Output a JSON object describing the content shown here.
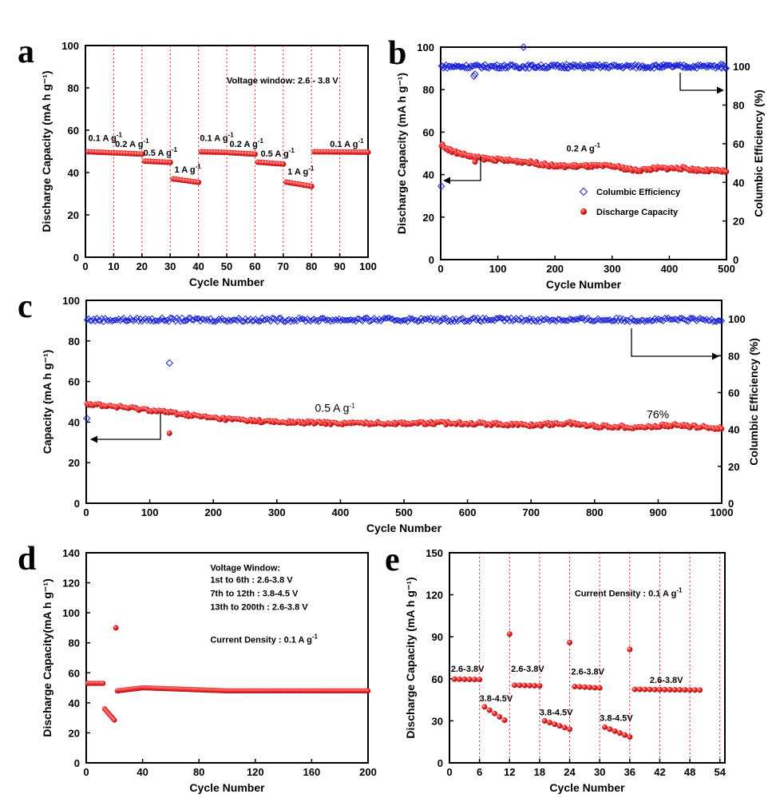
{
  "chart_data": [
    {
      "panel": "a",
      "type": "scatter",
      "xlabel": "Cycle Number",
      "ylabel": "Discharge Capacity (mA h g⁻¹)",
      "xlim": [
        0,
        100
      ],
      "ylim": [
        0,
        100
      ],
      "xticks": [
        0,
        10,
        20,
        30,
        40,
        50,
        60,
        70,
        80,
        90,
        100
      ],
      "yticks": [
        0,
        20,
        40,
        60,
        80,
        100
      ],
      "vlines": [
        10,
        20,
        30,
        40,
        50,
        60,
        70,
        80,
        90
      ],
      "series": [
        {
          "name": "Discharge Capacity",
          "color": "#e8191c",
          "segments": [
            {
              "from": 1,
              "to": 10,
              "start": 49.8,
              "end": 49.3
            },
            {
              "from": 11,
              "to": 20,
              "start": 49.3,
              "end": 48.7
            },
            {
              "from": 21,
              "to": 30,
              "start": 45.4,
              "end": 44.8
            },
            {
              "from": 31,
              "to": 40,
              "start": 37.0,
              "end": 35.4
            },
            {
              "from": 41,
              "to": 50,
              "start": 49.8,
              "end": 49.5
            },
            {
              "from": 51,
              "to": 60,
              "start": 49.4,
              "end": 48.7
            },
            {
              "from": 61,
              "to": 70,
              "start": 44.9,
              "end": 44.0
            },
            {
              "from": 71,
              "to": 80,
              "start": 35.5,
              "end": 33.5
            },
            {
              "from": 81,
              "to": 100,
              "start": 49.8,
              "end": 49.6
            }
          ]
        }
      ],
      "annotations": [
        {
          "text": "Voltage window: 2.6 - 3.8 V",
          "x": 50,
          "y": 82
        },
        {
          "text": "0.1 A g",
          "sup": "-1",
          "x": 1,
          "y": 55
        },
        {
          "text": "0.2 A g",
          "sup": "-1",
          "x": 10.5,
          "y": 52
        },
        {
          "text": "0.5 A g",
          "sup": "-1",
          "x": 20.5,
          "y": 48
        },
        {
          "text": "1 A g",
          "sup": "-1",
          "x": 31.5,
          "y": 40
        },
        {
          "text": "0.1 A g",
          "sup": "-1",
          "x": 40.5,
          "y": 55
        },
        {
          "text": "0.2 A g",
          "sup": "-1",
          "x": 51,
          "y": 52
        },
        {
          "text": "0.5 A g",
          "sup": "-1",
          "x": 62,
          "y": 47.5
        },
        {
          "text": "1 A g",
          "sup": "-1",
          "x": 71.5,
          "y": 39
        },
        {
          "text": "0.1 A g",
          "sup": "-1",
          "x": 86.5,
          "y": 52
        }
      ]
    },
    {
      "panel": "b",
      "type": "scatter",
      "xlabel": "Cycle Number",
      "ylabel": "Discharge Capacity (mA h g⁻¹)",
      "y2label": "Columbic Efficiency (%)",
      "xlim": [
        0,
        500
      ],
      "ylim": [
        0,
        100
      ],
      "y2lim": [
        0,
        110
      ],
      "xticks": [
        0,
        100,
        200,
        300,
        400,
        500
      ],
      "yticks": [
        0,
        20,
        40,
        60,
        80,
        100
      ],
      "y2ticks": [
        0,
        20,
        40,
        60,
        80,
        100
      ],
      "series": [
        {
          "name": "Columbic Efficiency",
          "axis": "right",
          "color": "#1a24d6",
          "points": [
            [
              1,
              100
            ],
            [
              500,
              100
            ]
          ],
          "outliers": [
            [
              1,
              38
            ],
            [
              58,
              95
            ],
            [
              60,
              96
            ],
            [
              145,
              110
            ],
            [
              220,
              101
            ],
            [
              490,
              101
            ]
          ]
        },
        {
          "name": "Discharge Capacity",
          "axis": "left",
          "color": "#e8191c",
          "points": [
            [
              1,
              54
            ],
            [
              20,
              51
            ],
            [
              60,
              48
            ],
            [
              100,
              47
            ],
            [
              150,
              46
            ],
            [
              200,
              44
            ],
            [
              250,
              44
            ],
            [
              300,
              44
            ],
            [
              340,
              42
            ],
            [
              380,
              43
            ],
            [
              420,
              43
            ],
            [
              460,
              42
            ],
            [
              500,
              41.5
            ]
          ],
          "outliers": [
            [
              60,
              46
            ]
          ]
        }
      ],
      "annotations": [
        {
          "text": "0.2 A g",
          "sup": "-1",
          "x": 220,
          "y": 51
        }
      ],
      "legend": {
        "position": "lower-right",
        "entries": [
          "Columbic Efficiency",
          "Discharge Capacity"
        ]
      }
    },
    {
      "panel": "c",
      "type": "scatter",
      "xlabel": "Cycle Number",
      "ylabel": "Capacity (mA h g⁻¹)",
      "y2label": "Columbic Efficiency (%)",
      "xlim": [
        0,
        1000
      ],
      "ylim": [
        0,
        100
      ],
      "y2lim": [
        0,
        110
      ],
      "xticks": [
        0,
        100,
        200,
        300,
        400,
        500,
        600,
        700,
        800,
        900,
        1000
      ],
      "yticks": [
        0,
        20,
        40,
        60,
        80,
        100
      ],
      "y2ticks": [
        0,
        20,
        40,
        60,
        80,
        100
      ],
      "series": [
        {
          "name": "Columbic Efficiency",
          "axis": "right",
          "color": "#1a24d6",
          "points": [
            [
              1,
              99.5
            ],
            [
              1000,
              99.5
            ]
          ],
          "outliers": [
            [
              1,
              46
            ],
            [
              131,
              76
            ]
          ]
        },
        {
          "name": "Capacity",
          "axis": "left",
          "color": "#e8191c",
          "points": [
            [
              1,
              49
            ],
            [
              50,
              47.5
            ],
            [
              100,
              46
            ],
            [
              150,
              44
            ],
            [
              200,
              42
            ],
            [
              250,
              41
            ],
            [
              300,
              40
            ],
            [
              400,
              39.5
            ],
            [
              500,
              39.5
            ],
            [
              600,
              39.5
            ],
            [
              700,
              38.5
            ],
            [
              760,
              39.5
            ],
            [
              800,
              38
            ],
            [
              880,
              37.5
            ],
            [
              920,
              38.5
            ],
            [
              1000,
              37
            ]
          ],
          "outliers": [
            [
              131,
              34.5
            ]
          ]
        }
      ],
      "annotations": [
        {
          "text": "0.5 A g",
          "sup": "-1",
          "x": 360,
          "y": 45
        },
        {
          "text": "76%",
          "x": 882,
          "y": 42
        }
      ]
    },
    {
      "panel": "d",
      "type": "scatter",
      "xlabel": "Cycle Number",
      "ylabel": "Discharge Capacity(mA h g⁻¹)",
      "xlim": [
        0,
        200
      ],
      "ylim": [
        0,
        140
      ],
      "xticks": [
        0,
        40,
        80,
        120,
        160,
        200
      ],
      "yticks": [
        0,
        20,
        40,
        60,
        80,
        100,
        120,
        140
      ],
      "series": [
        {
          "name": "Discharge Capacity",
          "color": "#e8191c",
          "segments": [
            {
              "from": 1,
              "to": 12,
              "start": 53,
              "end": 53
            },
            {
              "from": 13,
              "to": 20,
              "start": 36,
              "end": 28.5
            },
            {
              "from": 22,
              "to": 40,
              "start": 48,
              "end": 50
            },
            {
              "from": 41,
              "to": 100,
              "start": 50,
              "end": 48
            },
            {
              "from": 101,
              "to": 200,
              "start": 48,
              "end": 48
            }
          ],
          "outliers": [
            [
              21,
              90
            ]
          ]
        }
      ],
      "annotations": [
        {
          "text": "Voltage Window:",
          "x": 88,
          "y": 128
        },
        {
          "text": "1st to 6th : 2.6-3.8 V",
          "x": 88,
          "y": 120
        },
        {
          "text": "7th to 12th : 3.8-4.5 V",
          "x": 88,
          "y": 111
        },
        {
          "text": "13th to 200th : 2.6-3.8 V",
          "x": 88,
          "y": 102
        },
        {
          "text": "Current Density : 0.1 A g",
          "sup": "-1",
          "x": 88,
          "y": 80
        }
      ]
    },
    {
      "panel": "e",
      "type": "scatter",
      "xlabel": "Cycle Number",
      "ylabel": "Discharge Capacity (mA h g⁻¹)",
      "xlim": [
        0,
        55
      ],
      "ylim": [
        0,
        150
      ],
      "xticks": [
        0,
        6,
        12,
        18,
        24,
        30,
        36,
        42,
        48,
        54
      ],
      "yticks": [
        0,
        30,
        60,
        90,
        120,
        150
      ],
      "vlines": [
        6,
        12,
        18,
        24,
        30,
        36,
        42,
        48,
        54
      ],
      "series": [
        {
          "name": "Discharge Capacity",
          "color": "#e8191c",
          "segments": [
            {
              "from": 1,
              "to": 6,
              "start": 59.8,
              "end": 59.5
            },
            {
              "from": 7,
              "to": 11,
              "start": 40,
              "end": 30.5
            },
            {
              "from": 13,
              "to": 18,
              "start": 55.5,
              "end": 55
            },
            {
              "from": 19,
              "to": 24,
              "start": 30,
              "end": 24
            },
            {
              "from": 25,
              "to": 30,
              "start": 54.5,
              "end": 53.5
            },
            {
              "from": 31,
              "to": 36,
              "start": 25.5,
              "end": 18.5
            },
            {
              "from": 37,
              "to": 50,
              "start": 52.5,
              "end": 52
            }
          ],
          "outliers": [
            [
              12,
              92
            ],
            [
              24,
              86
            ],
            [
              36,
              81
            ]
          ]
        }
      ],
      "annotations": [
        {
          "text": "Current Density : 0.1 A g",
          "sup": "-1",
          "x": 25,
          "y": 119
        },
        {
          "text": "2.6-3.8V",
          "x": 0.3,
          "y": 65
        },
        {
          "text": "3.8-4.5V",
          "x": 6,
          "y": 44
        },
        {
          "text": "2.6-3.8V",
          "x": 12.3,
          "y": 65
        },
        {
          "text": "3.8-4.5V",
          "x": 18,
          "y": 34
        },
        {
          "text": "2.6-3.8V",
          "x": 24.3,
          "y": 63
        },
        {
          "text": "3.8-4.5V",
          "x": 30,
          "y": 30
        },
        {
          "text": "2.6-3.8V",
          "x": 40,
          "y": 57
        }
      ]
    }
  ],
  "colors": {
    "red": "#e8191c",
    "blue": "#1a24d6",
    "grid_red": "#e8191c"
  }
}
